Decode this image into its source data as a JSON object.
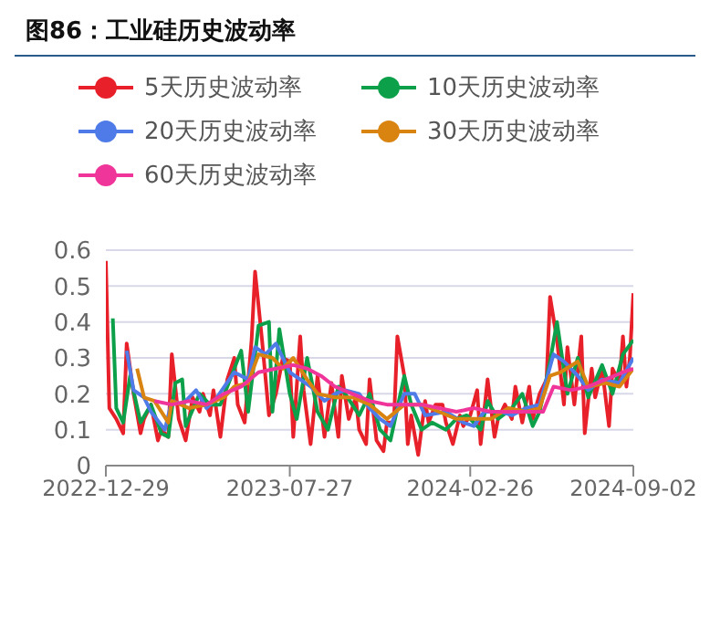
{
  "chart_data": {
    "type": "line",
    "title": "图86：工业硅历史波动率",
    "categories": [
      "2022-12-29",
      null,
      null,
      null,
      null,
      null,
      null,
      null,
      null,
      null,
      null,
      null,
      null,
      null,
      null,
      null,
      null,
      null,
      null,
      null,
      null,
      null,
      null,
      null,
      null,
      null,
      null,
      null,
      null,
      null,
      null,
      null,
      null,
      null,
      null,
      null,
      null,
      null,
      null,
      null,
      null,
      null,
      null,
      null,
      null,
      null,
      null,
      null,
      null,
      null,
      null,
      null,
      null,
      "2023-07-27",
      null,
      null,
      null,
      null,
      null,
      null,
      null,
      null,
      null,
      null,
      null,
      null,
      null,
      null,
      null,
      null,
      null,
      null,
      null,
      null,
      null,
      null,
      null,
      null,
      null,
      null,
      null,
      null,
      null,
      null,
      null,
      null,
      null,
      null,
      null,
      null,
      null,
      null,
      null,
      null,
      null,
      null,
      null,
      null,
      null,
      null,
      null,
      null,
      null,
      null,
      null,
      "2024-02-26",
      null,
      null,
      null,
      null,
      null,
      null,
      null,
      null,
      null,
      null,
      null,
      null,
      null,
      null,
      null,
      null,
      null,
      null,
      null,
      null,
      null,
      null,
      null,
      null,
      null,
      null,
      null,
      null,
      null,
      null,
      null,
      null,
      null,
      null,
      null,
      null,
      null,
      null,
      null,
      null,
      null,
      null,
      null,
      null,
      null,
      null,
      "2024-09-02"
    ],
    "series": [
      {
        "name": "5天历史波动率",
        "color": "#e8202a",
        "values": [
          0.57,
          0.16,
          null,
          0.13,
          null,
          0.09,
          0.34,
          null,
          0.2,
          null,
          0.09,
          0.13,
          null,
          0.17,
          null,
          0.07,
          0.1,
          null,
          0.08,
          0.31,
          null,
          0.13,
          null,
          0.07,
          null,
          0.19,
          null,
          0.15,
          0.2,
          null,
          0.14,
          0.21,
          null,
          0.08,
          null,
          0.24,
          null,
          0.3,
          0.17,
          null,
          0.12,
          null,
          0.35,
          0.54,
          null,
          0.35,
          null,
          0.14,
          null,
          0.2,
          null,
          0.3,
          null,
          0.29,
          0.08,
          null,
          0.36,
          0.21,
          null,
          0.06,
          null,
          0.25,
          null,
          0.08,
          null,
          0.23,
          null,
          0.08,
          0.25,
          null,
          0.13,
          null,
          0.19,
          0.1,
          null,
          0.06,
          0.24,
          null,
          0.07,
          null,
          0.04,
          0.12,
          null,
          0.12,
          0.36,
          null,
          0.25,
          0.06,
          0.14,
          null,
          0.03,
          null,
          0.18,
          0.12,
          null,
          0.17,
          null,
          0.17,
          0.12,
          null,
          0.06,
          null,
          0.14,
          0.11,
          null,
          0.14,
          null,
          0.21,
          0.06,
          null,
          0.24,
          null,
          0.08,
          0.13,
          null,
          0.17,
          null,
          0.13,
          0.22,
          null,
          0.12,
          null,
          0.22,
          0.13,
          null,
          0.2,
          null,
          0.24,
          0.47,
          null,
          0.35,
          null,
          0.17,
          0.33,
          null,
          0.17,
          null,
          0.36,
          0.09,
          null,
          0.27,
          0.19,
          null,
          0.27,
          null,
          0.11,
          0.27,
          null,
          0.23,
          0.36,
          0.22,
          0.3,
          0.48
        ]
      },
      {
        "name": "10天历史波动率",
        "color": "#0ca04a",
        "values": [
          null,
          null,
          0.41,
          0.16,
          null,
          0.12,
          null,
          0.25,
          null,
          null,
          0.12,
          null,
          null,
          0.17,
          null,
          null,
          0.09,
          null,
          0.08,
          null,
          0.23,
          null,
          0.24,
          0.11,
          null,
          null,
          null,
          0.2,
          null,
          null,
          0.17,
          null,
          null,
          0.17,
          null,
          null,
          null,
          0.27,
          null,
          0.32,
          null,
          0.15,
          null,
          null,
          0.39,
          null,
          null,
          0.4,
          0.15,
          null,
          0.38,
          null,
          null,
          0.2,
          null,
          0.13,
          null,
          null,
          0.3,
          null,
          null,
          0.15,
          null,
          null,
          0.1,
          null,
          null,
          0.22,
          null,
          0.2,
          null,
          null,
          null,
          0.14,
          null,
          null,
          0.2,
          null,
          null,
          0.1,
          null,
          null,
          0.07,
          null,
          null,
          null,
          0.25,
          null,
          0.17,
          null,
          null,
          0.1,
          null,
          null,
          0.12,
          null,
          null,
          null,
          0.1,
          null,
          null,
          0.13,
          null,
          null,
          0.14,
          null,
          null,
          null,
          0.1,
          null,
          0.18,
          null,
          null,
          0.13,
          null,
          null,
          null,
          0.16,
          null,
          null,
          0.2,
          null,
          null,
          0.11,
          null,
          0.15,
          null,
          null,
          0.29,
          null,
          0.4,
          null,
          null,
          0.2,
          null,
          null,
          0.3,
          null,
          null,
          0.19,
          null,
          null,
          null,
          0.28,
          null,
          null,
          0.2,
          null,
          null,
          0.31,
          null,
          null,
          0.35
        ]
      },
      {
        "name": "20天历史波动率",
        "color": "#4f7be8",
        "values": [
          null,
          null,
          null,
          null,
          null,
          null,
          0.32,
          null,
          0.21,
          null,
          null,
          0.19,
          null,
          0.15,
          null,
          null,
          null,
          0.1,
          null,
          0.18,
          null,
          null,
          0.17,
          null,
          null,
          null,
          0.21,
          null,
          null,
          0.16,
          null,
          null,
          0.19,
          null,
          null,
          null,
          null,
          0.26,
          null,
          null,
          null,
          0.24,
          null,
          0.33,
          null,
          null,
          0.31,
          null,
          null,
          0.34,
          null,
          null,
          null,
          0.26,
          null,
          null,
          0.24,
          null,
          null,
          0.22,
          null,
          null,
          null,
          0.18,
          null,
          null,
          0.2,
          null,
          null,
          0.21,
          null,
          null,
          null,
          0.2,
          null,
          null,
          0.16,
          null,
          null,
          0.13,
          null,
          null,
          0.11,
          null,
          null,
          null,
          0.2,
          null,
          null,
          0.2,
          null,
          null,
          0.14,
          null,
          null,
          null,
          null,
          null,
          0.15,
          null,
          null,
          null,
          null,
          0.12,
          null,
          null,
          0.11,
          null,
          null,
          0.15,
          null,
          null,
          null,
          null,
          0.15,
          null,
          null,
          0.14,
          null,
          null,
          null,
          0.16,
          null,
          null,
          null,
          0.17,
          null,
          null,
          null,
          0.31,
          null,
          null,
          0.29,
          null,
          null,
          null,
          0.25,
          null,
          null,
          0.21,
          null,
          null,
          null,
          0.24,
          null,
          null,
          null,
          null,
          0.23,
          null,
          null,
          null,
          0.3
        ]
      },
      {
        "name": "30天历史波动率",
        "color": "#d98310",
        "values": [
          null,
          null,
          null,
          null,
          null,
          null,
          null,
          null,
          null,
          0.27,
          null,
          0.19,
          null,
          null,
          0.18,
          null,
          null,
          null,
          0.12,
          0.18,
          null,
          null,
          null,
          null,
          0.16,
          null,
          null,
          null,
          null,
          0.17,
          null,
          null,
          null,
          null,
          0.19,
          null,
          null,
          0.22,
          null,
          null,
          null,
          0.23,
          null,
          null,
          0.31,
          null,
          null,
          null,
          0.3,
          null,
          null,
          0.27,
          null,
          null,
          0.3,
          null,
          null,
          null,
          0.24,
          null,
          null,
          0.2,
          null,
          null,
          null,
          null,
          0.19,
          null,
          null,
          null,
          null,
          0.19,
          null,
          null,
          null,
          null,
          0.17,
          null,
          null,
          null,
          null,
          0.13,
          null,
          null,
          null,
          null,
          0.17,
          null,
          null,
          null,
          null,
          0.17,
          null,
          null,
          null,
          null,
          0.15,
          null,
          null,
          null,
          null,
          0.13,
          null,
          null,
          null,
          null,
          0.13,
          null,
          null,
          null,
          null,
          0.13,
          null,
          null,
          null,
          null,
          0.16,
          null,
          null,
          null,
          null,
          0.15,
          null,
          null,
          null,
          0.16,
          null,
          null,
          0.25,
          null,
          null,
          0.26,
          null,
          null,
          null,
          null,
          0.29,
          null,
          null,
          0.22,
          null,
          null,
          null,
          null,
          0.23,
          null,
          null,
          null,
          0.22,
          null,
          null,
          null,
          0.27
        ]
      },
      {
        "name": "60天历史波动率",
        "color": "#f0359a",
        "values": [
          null,
          null,
          null,
          null,
          null,
          null,
          null,
          null,
          null,
          null,
          null,
          null,
          null,
          null,
          0.18,
          null,
          null,
          null,
          null,
          0.17,
          null,
          null,
          null,
          null,
          0.18,
          null,
          null,
          null,
          null,
          0.17,
          null,
          null,
          null,
          null,
          0.2,
          null,
          null,
          null,
          null,
          0.22,
          null,
          null,
          null,
          null,
          0.26,
          null,
          null,
          null,
          null,
          0.27,
          null,
          null,
          null,
          null,
          0.28,
          null,
          null,
          null,
          0.27,
          null,
          null,
          null,
          0.25,
          null,
          null,
          null,
          0.22,
          null,
          null,
          null,
          null,
          0.2,
          null,
          null,
          null,
          null,
          0.18,
          null,
          null,
          null,
          null,
          0.17,
          null,
          null,
          null,
          null,
          0.17,
          null,
          null,
          null,
          null,
          0.17,
          null,
          null,
          null,
          null,
          0.16,
          null,
          null,
          null,
          null,
          0.15,
          null,
          null,
          null,
          null,
          0.16,
          null,
          null,
          null,
          null,
          0.15,
          null,
          null,
          null,
          null,
          0.15,
          null,
          null,
          null,
          null,
          0.15,
          null,
          null,
          null,
          null,
          0.15,
          null,
          null,
          0.22,
          null,
          null,
          null,
          null,
          0.21,
          null,
          null,
          null,
          null,
          0.22,
          null,
          null,
          null,
          null,
          0.24,
          null,
          null,
          null,
          null,
          0.26,
          null,
          null,
          0.27
        ]
      }
    ],
    "ylim": [
      0,
      0.6
    ],
    "yticks": [
      0,
      0.1,
      0.2,
      0.3,
      0.4,
      0.5,
      0.6
    ],
    "grid": "y",
    "legend": "top"
  }
}
